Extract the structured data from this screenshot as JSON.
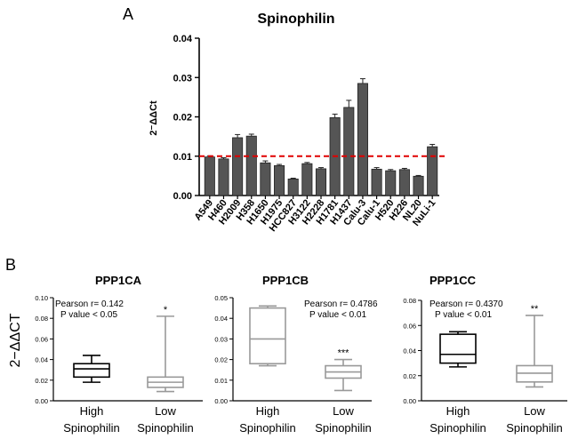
{
  "chart_data": [
    {
      "type": "bar",
      "panel_label": "A",
      "title": "Spinophilin",
      "ylabel": "2⁻ΔΔCt",
      "xlabel": "",
      "ylim": [
        0,
        0.04
      ],
      "yticks": [
        "0.00",
        "0.01",
        "0.02",
        "0.03",
        "0.04"
      ],
      "categories": [
        "A549",
        "H460",
        "H2009",
        "H358",
        "H1650",
        "H1975",
        "HCC827",
        "H3122",
        "H2228",
        "H1781",
        "H1437",
        "Calu-3",
        "Calu-1",
        "H520",
        "H226",
        "NL20",
        "NuLi-1"
      ],
      "values": [
        0.0098,
        0.0093,
        0.0147,
        0.0151,
        0.0083,
        0.0076,
        0.0042,
        0.0081,
        0.0068,
        0.0198,
        0.0224,
        0.0285,
        0.0067,
        0.0063,
        0.0066,
        0.0049,
        0.0124
      ],
      "errors": [
        0.0003,
        0.0003,
        0.0008,
        0.0005,
        0.0005,
        0.0003,
        0.0002,
        0.0003,
        0.0003,
        0.0009,
        0.0018,
        0.0012,
        0.0004,
        0.0003,
        0.0003,
        0.0002,
        0.0006
      ],
      "reference_line": 0.01,
      "bar_color": "#555555",
      "reference_color": "#e00000"
    },
    {
      "type": "box",
      "panel_label": "B",
      "title": "PPP1CA",
      "ylabel": "2−ΔΔCT",
      "ylim": [
        0,
        0.1
      ],
      "yticks": [
        "0.00",
        "0.02",
        "0.04",
        "0.06",
        "0.08",
        "0.10"
      ],
      "pearson": "Pearson r=  0.142",
      "pvalue": "P value   < 0.05",
      "groups": [
        {
          "label1": "High",
          "label2": "Spinophilin",
          "min": 0.018,
          "q1": 0.023,
          "median": 0.031,
          "q3": 0.036,
          "max": 0.044,
          "color": "#000000"
        },
        {
          "label1": "Low",
          "label2": "Spinophilin",
          "min": 0.009,
          "q1": 0.013,
          "median": 0.018,
          "q3": 0.023,
          "max": 0.082,
          "color": "#999999",
          "significance": "*"
        }
      ]
    },
    {
      "type": "box",
      "panel_label": "",
      "title": "PPP1CB",
      "ylabel": "",
      "ylim": [
        0,
        0.05
      ],
      "yticks": [
        "0.00",
        "0.01",
        "0.02",
        "0.03",
        "0.04",
        "0.05"
      ],
      "pearson": "Pearson r=  0.4786",
      "pvalue": "P value   < 0.01",
      "groups": [
        {
          "label1": "High",
          "label2": "Spinophilin",
          "min": 0.017,
          "q1": 0.018,
          "median": 0.03,
          "q3": 0.045,
          "max": 0.046,
          "color": "#999999"
        },
        {
          "label1": "Low",
          "label2": "Spinophilin",
          "min": 0.005,
          "q1": 0.011,
          "median": 0.014,
          "q3": 0.017,
          "max": 0.02,
          "color": "#999999",
          "significance": "***"
        }
      ]
    },
    {
      "type": "box",
      "panel_label": "",
      "title": "PPP1CC",
      "ylabel": "",
      "ylim": [
        0,
        0.08
      ],
      "yticks": [
        "0.00",
        "0.02",
        "0.04",
        "0.06",
        "0.08"
      ],
      "pearson": "Pearson r=  0.4370",
      "pvalue": "P value   < 0.01",
      "groups": [
        {
          "label1": "High",
          "label2": "Spinophilin",
          "min": 0.027,
          "q1": 0.03,
          "median": 0.037,
          "q3": 0.053,
          "max": 0.055,
          "color": "#000000"
        },
        {
          "label1": "Low",
          "label2": "Spinophilin",
          "min": 0.011,
          "q1": 0.015,
          "median": 0.022,
          "q3": 0.028,
          "max": 0.068,
          "color": "#999999",
          "significance": "**"
        }
      ]
    }
  ]
}
